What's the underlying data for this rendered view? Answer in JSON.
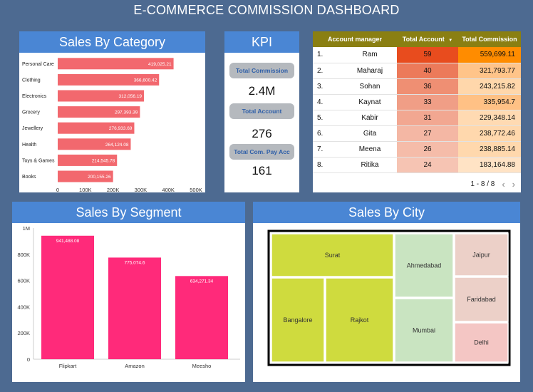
{
  "dashboard_title": "E-COMMERCE COMMISSION DASHBOARD",
  "panels": {
    "category_title": "Sales By Category",
    "kpi_title": "KPI",
    "segment_title": "Sales By Segment",
    "city_title": "Sales By City"
  },
  "kpi": {
    "total_commission_label": "Total Commission",
    "total_commission_value": "2.4M",
    "total_account_label": "Total Account",
    "total_account_value": "276",
    "total_com_pay_acc_label": "Total Com. Pay Acc",
    "total_com_pay_acc_value": "161"
  },
  "table": {
    "headers": [
      "Account manager",
      "Total Account",
      "Total Commission"
    ],
    "sort_indicator": "▼",
    "rows": [
      {
        "idx": "1.",
        "name": "Ram",
        "accounts": "59",
        "commission": "559,699.11",
        "acc_color": "#e84c1e",
        "com_color": "#ff8c00"
      },
      {
        "idx": "2.",
        "name": "Maharaj",
        "accounts": "40",
        "commission": "321,793.77",
        "acc_color": "#ec7a5a",
        "com_color": "#ffc489"
      },
      {
        "idx": "3.",
        "name": "Sohan",
        "accounts": "36",
        "commission": "243,215.82",
        "acc_color": "#ef8f73",
        "com_color": "#ffd7ab"
      },
      {
        "idx": "4.",
        "name": "Kaynat",
        "accounts": "33",
        "commission": "335,954.7",
        "acc_color": "#f09e86",
        "com_color": "#ffc185"
      },
      {
        "idx": "5.",
        "name": "Kabir",
        "accounts": "31",
        "commission": "229,348.14",
        "acc_color": "#f2a791",
        "com_color": "#ffdab2"
      },
      {
        "idx": "6.",
        "name": "Gita",
        "accounts": "27",
        "commission": "238,772.46",
        "acc_color": "#f4b7a4",
        "com_color": "#ffd8ad"
      },
      {
        "idx": "7.",
        "name": "Meena",
        "accounts": "26",
        "commission": "238,885.14",
        "acc_color": "#f5bca9",
        "com_color": "#ffd8ad"
      },
      {
        "idx": "8.",
        "name": "Ritika",
        "accounts": "24",
        "commission": "183,164.88",
        "acc_color": "#f6c4b3",
        "com_color": "#ffe3c5"
      }
    ],
    "pager_text": "1 - 8 / 8",
    "prev_icon": "‹",
    "next_icon": "›"
  },
  "colors": {
    "background": "#4d6a91",
    "header_blue": "#4a86d4",
    "category_bar": "#f2686e",
    "segment_bar": "#ff2a7a",
    "table_header": "#8a7f12"
  },
  "chart_data": [
    {
      "type": "bar",
      "orientation": "horizontal",
      "title": "Sales By Category",
      "categories": [
        "Personal Care",
        "Clothing",
        "Electronics",
        "Grocery",
        "Jewellery",
        "Health",
        "Toys & Games",
        "Books"
      ],
      "values": [
        419025.21,
        366600.42,
        312056.19,
        297393.39,
        276933.69,
        264124.08,
        214545.78,
        200155.26
      ],
      "value_labels": [
        "419,025.21",
        "366,600.42",
        "312,056.19",
        "297,393.39",
        "276,933.69",
        "264,124.08",
        "214,545.78",
        "200,155.26"
      ],
      "xlim": [
        0,
        500000
      ],
      "x_ticks": [
        "0",
        "100K",
        "200K",
        "300K",
        "400K",
        "500K"
      ],
      "grid": false
    },
    {
      "type": "bar",
      "title": "Sales By Segment",
      "categories": [
        "Flipkart",
        "Amazon",
        "Meesho"
      ],
      "values": [
        941488.08,
        775074.6,
        634271.34
      ],
      "value_labels": [
        "941,488.08",
        "775,074.6",
        "634,271.34"
      ],
      "ylim": [
        0,
        1000000
      ],
      "y_ticks": [
        "0",
        "200K",
        "400K",
        "600K",
        "800K",
        "1M"
      ],
      "grid": false
    },
    {
      "type": "treemap",
      "title": "Sales By City",
      "cells": [
        {
          "label": "Surat",
          "color": "#cfdb3e"
        },
        {
          "label": "Bangalore",
          "color": "#cfdb3e"
        },
        {
          "label": "Rajkot",
          "color": "#cfdb3e"
        },
        {
          "label": "Ahmedabad",
          "color": "#c9e4c1"
        },
        {
          "label": "Mumbai",
          "color": "#c9e4c1"
        },
        {
          "label": "Jaipur",
          "color": "#ecd0c8"
        },
        {
          "label": "Faridabad",
          "color": "#ecd0c8"
        },
        {
          "label": "Delhi",
          "color": "#f4c6c4"
        }
      ]
    }
  ]
}
